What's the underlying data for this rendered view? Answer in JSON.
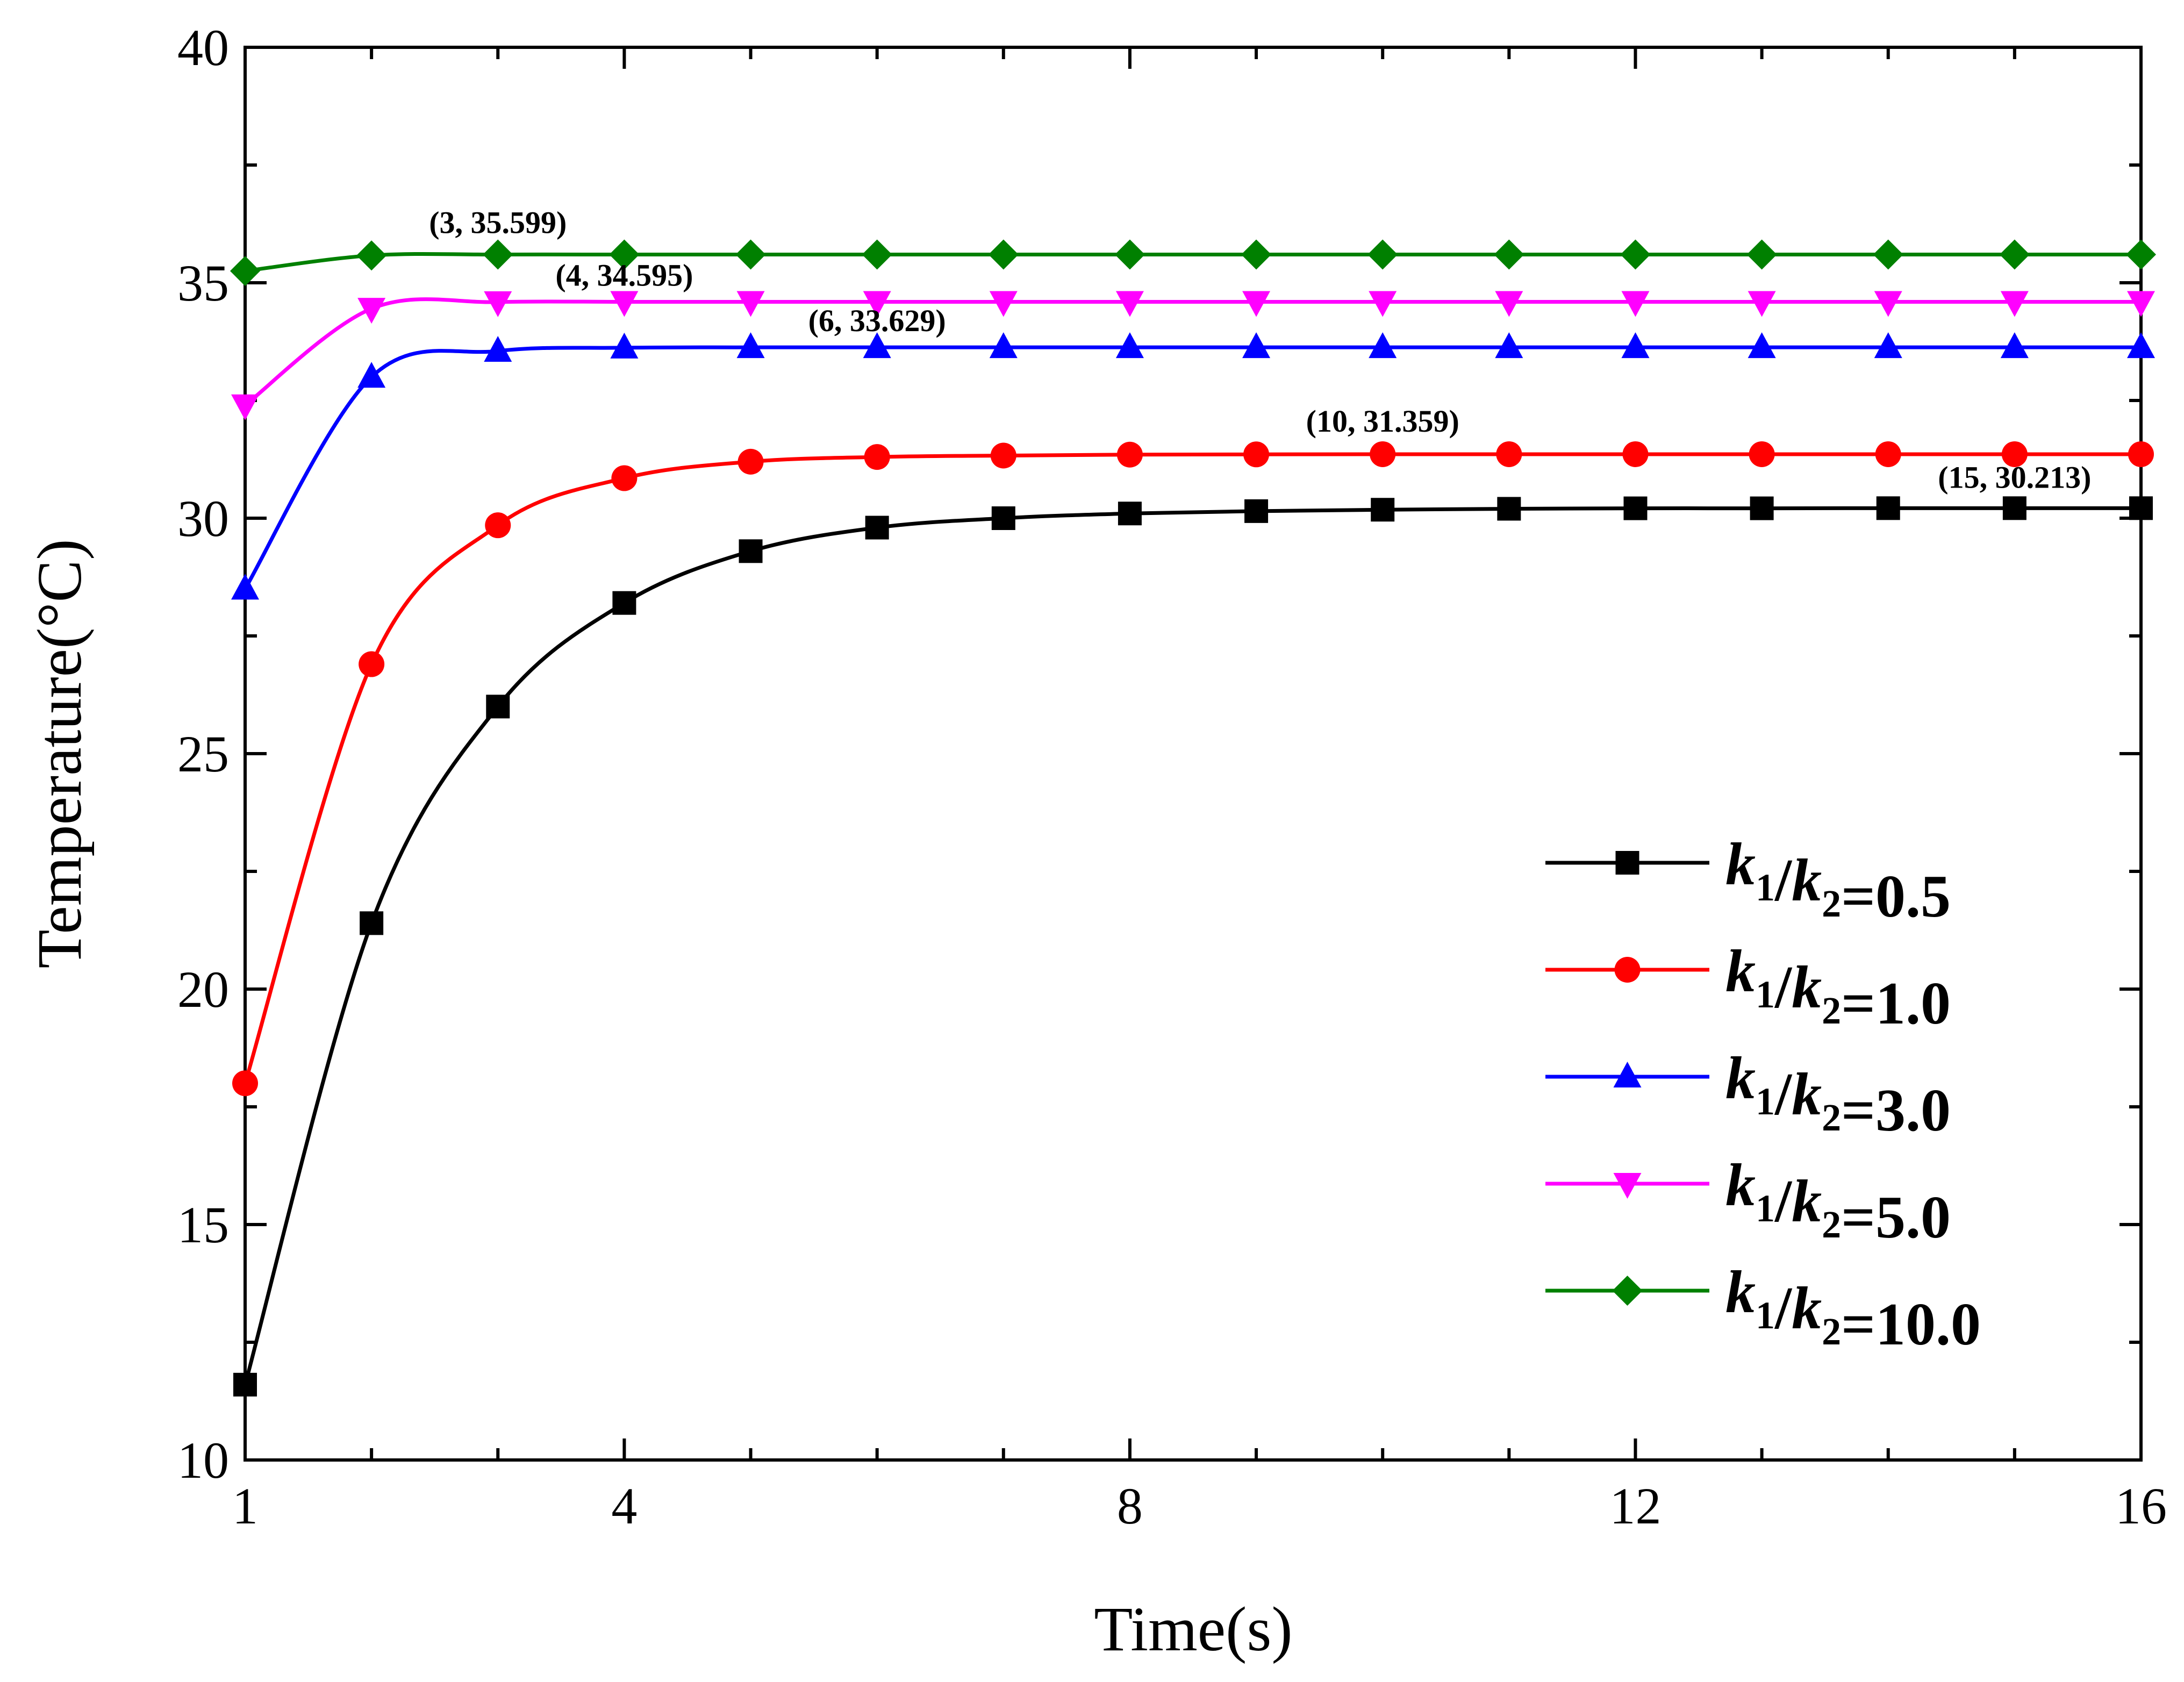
{
  "chart_data": {
    "type": "line",
    "xlabel": "Time(s)",
    "ylabel": "Temperature(°C)",
    "xlim": [
      1,
      16
    ],
    "ylim": [
      10,
      40
    ],
    "x_ticks": [
      1,
      4,
      8,
      12,
      16
    ],
    "y_ticks": [
      10,
      15,
      20,
      25,
      30,
      35,
      40
    ],
    "x": [
      1,
      2,
      3,
      4,
      5,
      6,
      7,
      8,
      9,
      10,
      11,
      12,
      13,
      14,
      15,
      16
    ],
    "legend_position": "right",
    "series": [
      {
        "name": "k1/k2=0.5",
        "prefix": "=0.5",
        "color": "#000000",
        "marker": "square",
        "values": [
          11.6,
          21.4,
          26.0,
          28.2,
          29.3,
          29.8,
          30.0,
          30.1,
          30.15,
          30.18,
          30.2,
          30.21,
          30.21,
          30.213,
          30.213,
          30.213
        ]
      },
      {
        "name": "k1/k2=1.0",
        "prefix": "=1.0",
        "color": "#ff0000",
        "marker": "circle",
        "values": [
          18.0,
          26.9,
          29.85,
          30.85,
          31.2,
          31.3,
          31.33,
          31.35,
          31.355,
          31.359,
          31.359,
          31.359,
          31.359,
          31.359,
          31.359,
          31.359
        ]
      },
      {
        "name": "k1/k2=3.0",
        "prefix": "=3.0",
        "color": "#0000ff",
        "marker": "triangle-up",
        "values": [
          28.5,
          33.0,
          33.55,
          33.62,
          33.628,
          33.629,
          33.629,
          33.629,
          33.629,
          33.629,
          33.629,
          33.629,
          33.629,
          33.629,
          33.629,
          33.629
        ]
      },
      {
        "name": "k1/k2=5.0",
        "prefix": "=5.0",
        "color": "#ff00ff",
        "marker": "triangle-down",
        "values": [
          32.4,
          34.45,
          34.59,
          34.595,
          34.595,
          34.595,
          34.595,
          34.595,
          34.595,
          34.595,
          34.595,
          34.595,
          34.595,
          34.595,
          34.595,
          34.595
        ]
      },
      {
        "name": "k1/k2=10.0",
        "prefix": "=10.0",
        "color": "#008000",
        "marker": "diamond",
        "values": [
          35.25,
          35.58,
          35.599,
          35.599,
          35.599,
          35.599,
          35.599,
          35.599,
          35.599,
          35.599,
          35.599,
          35.599,
          35.599,
          35.599,
          35.599,
          35.599
        ]
      }
    ],
    "annotations": [
      {
        "text": "(3, 35.599)",
        "x": 3,
        "y": 35.599,
        "series": 4
      },
      {
        "text": "(4, 34.595)",
        "x": 4,
        "y": 34.595,
        "series": 3
      },
      {
        "text": "(6, 33.629)",
        "x": 6,
        "y": 33.629,
        "series": 2
      },
      {
        "text": "(10, 31.359)",
        "x": 10,
        "y": 31.359,
        "series": 1
      },
      {
        "text": "(15, 30.213)",
        "x": 15,
        "y": 30.213,
        "series": 0
      }
    ]
  }
}
